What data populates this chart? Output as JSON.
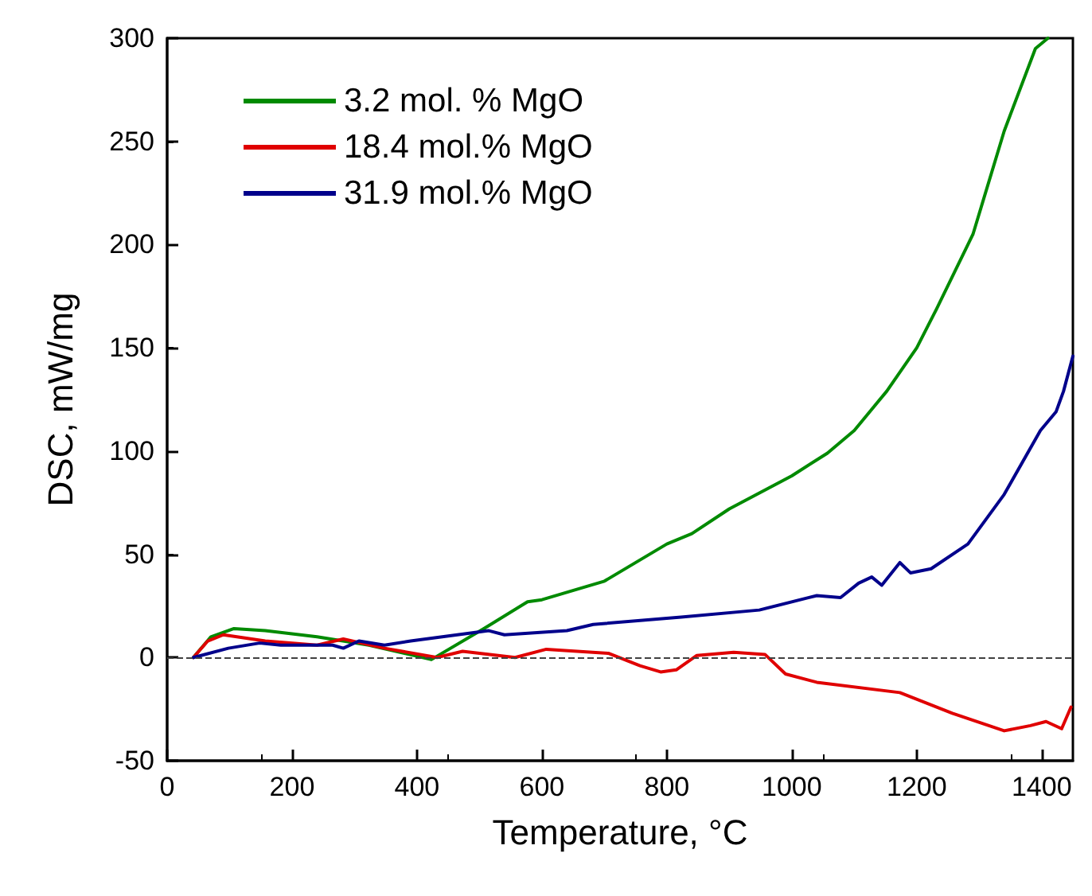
{
  "chart_data": {
    "type": "line",
    "xlabel": "Temperature, °C",
    "ylabel": "DSC, mW/mg",
    "xlim": [
      0,
      1450
    ],
    "xticks": [
      0,
      200,
      400,
      600,
      800,
      1000,
      1200,
      1400
    ],
    "ylim": [
      -50,
      300
    ],
    "yticks": [
      -50,
      0,
      50,
      100,
      150,
      200,
      250,
      300
    ],
    "grid": false,
    "legend": "top left",
    "marker": "none",
    "line_style": "solid",
    "ref_lines": [
      {
        "axis": "y",
        "value": 0,
        "color": "#404040",
        "line_style": "dashed"
      }
    ],
    "series": [
      {
        "name": "3.2 mol. % MgO",
        "color": "#008a00",
        "x": [
          42,
          70,
          107,
          157,
          240,
          323,
          423,
          507,
          577,
          600,
          700,
          800,
          840,
          900,
          1000,
          1057,
          1100,
          1152,
          1200,
          1232,
          1290,
          1340,
          1390,
          1410
        ],
        "values": [
          0,
          10,
          14,
          13,
          10,
          6,
          -1,
          14,
          27,
          28,
          37,
          55,
          60,
          72,
          88,
          99,
          110,
          129,
          150,
          169,
          205,
          255,
          295,
          300
        ]
      },
      {
        "name": "18.4 mol.% MgO",
        "color": "#e00000",
        "x": [
          42,
          65,
          90,
          157,
          240,
          282,
          348,
          432,
          473,
          557,
          607,
          707,
          757,
          790,
          815,
          848,
          907,
          957,
          990,
          1040,
          1173,
          1257,
          1340,
          1382,
          1407,
          1432,
          1447
        ],
        "values": [
          0,
          8,
          11,
          8,
          6,
          9,
          4.5,
          0,
          3,
          0,
          4,
          2,
          -4,
          -7,
          -6,
          1,
          2.5,
          1.5,
          -8,
          -12,
          -17,
          -27,
          -35.5,
          -33,
          -31,
          -34.5,
          -24
        ]
      },
      {
        "name": "31.9 mol.% MgO",
        "color": "#00008b",
        "x": [
          42,
          98,
          148,
          182,
          265,
          282,
          307,
          348,
          390,
          515,
          540,
          640,
          682,
          823,
          948,
          1040,
          1078,
          1107,
          1128,
          1144,
          1173,
          1190,
          1223,
          1282,
          1340,
          1398,
          1423,
          1435,
          1450
        ],
        "values": [
          0,
          4.5,
          7,
          6,
          6,
          4.5,
          8,
          6,
          8,
          13,
          11,
          13,
          16,
          19.6,
          23,
          30,
          29,
          36,
          39,
          35,
          46,
          41,
          43,
          55,
          79,
          110,
          119,
          129,
          146
        ]
      }
    ]
  }
}
